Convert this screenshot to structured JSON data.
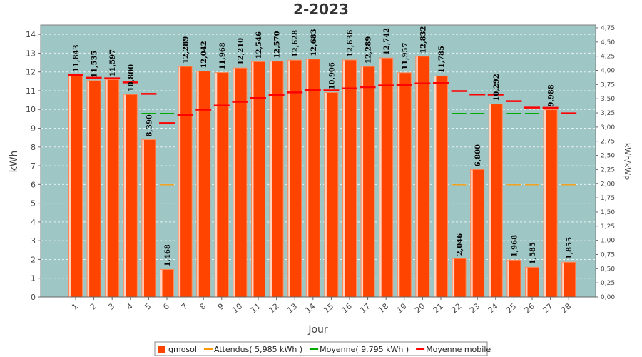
{
  "chart_data": {
    "type": "bar",
    "title": "2-2023",
    "xlabel": "Jour",
    "ylabel": "kWh",
    "y2label": "kWh/kWp",
    "ylim": [
      0,
      14.5
    ],
    "y2lim": [
      0,
      4.8
    ],
    "yticks": [
      "0",
      "1",
      "2",
      "3",
      "4",
      "5",
      "6",
      "7",
      "8",
      "9",
      "10",
      "11",
      "12",
      "13",
      "14"
    ],
    "y2ticks": [
      "0,00",
      "0,25",
      "0,50",
      "0,75",
      "1,00",
      "1,25",
      "1,50",
      "1,75",
      "2,00",
      "2,25",
      "2,50",
      "2,75",
      "3,00",
      "3,25",
      "3,50",
      "3,75",
      "4,00",
      "4,25",
      "4,50",
      "4,75"
    ],
    "categories": [
      "1",
      "2",
      "3",
      "4",
      "5",
      "6",
      "7",
      "8",
      "9",
      "10",
      "11",
      "12",
      "13",
      "14",
      "15",
      "16",
      "17",
      "18",
      "19",
      "20",
      "21",
      "22",
      "23",
      "24",
      "25",
      "26",
      "27",
      "28"
    ],
    "series": [
      {
        "name": "gmosol",
        "kind": "bar",
        "color": "#ff4400",
        "values": [
          11.843,
          11.535,
          11.597,
          10.8,
          8.39,
          1.468,
          12.289,
          12.042,
          11.968,
          12.21,
          12.546,
          12.57,
          12.628,
          12.683,
          10.906,
          12.636,
          12.289,
          12.742,
          11.957,
          12.832,
          11.785,
          2.046,
          6.8,
          10.292,
          1.968,
          1.585,
          9.988,
          1.855
        ],
        "labels": [
          "11,843",
          "11,535",
          "11,597",
          "10,800",
          "8,390",
          "1,468",
          "12,289",
          "12,042",
          "11,968",
          "12,210",
          "12,546",
          "12,570",
          "12,628",
          "12,683",
          "10,906",
          "12,636",
          "12,289",
          "12,742",
          "11,957",
          "12,832",
          "11,785",
          "2,046",
          "6,800",
          "10,292",
          "1,968",
          "1,585",
          "9,988",
          "1,855"
        ]
      },
      {
        "name": "Attendus( 5,985 kWh )",
        "kind": "constant",
        "color": "#ff9900",
        "value": 5.985
      },
      {
        "name": "Moyenne( 9,795 kWh )",
        "kind": "constant",
        "color": "#00aa00",
        "value": 9.795
      },
      {
        "name": "Moyenne mobile",
        "kind": "marker",
        "color": "#ff0000",
        "values": [
          11.843,
          11.69,
          11.66,
          11.44,
          10.83,
          9.27,
          9.7,
          9.99,
          10.21,
          10.41,
          10.61,
          10.77,
          10.91,
          11.03,
          11.02,
          11.12,
          11.19,
          11.28,
          11.31,
          11.39,
          11.41,
          10.98,
          10.8,
          10.79,
          10.44,
          10.1,
          10.09,
          9.795
        ]
      }
    ],
    "legend_position": "bottom",
    "grid": true
  }
}
